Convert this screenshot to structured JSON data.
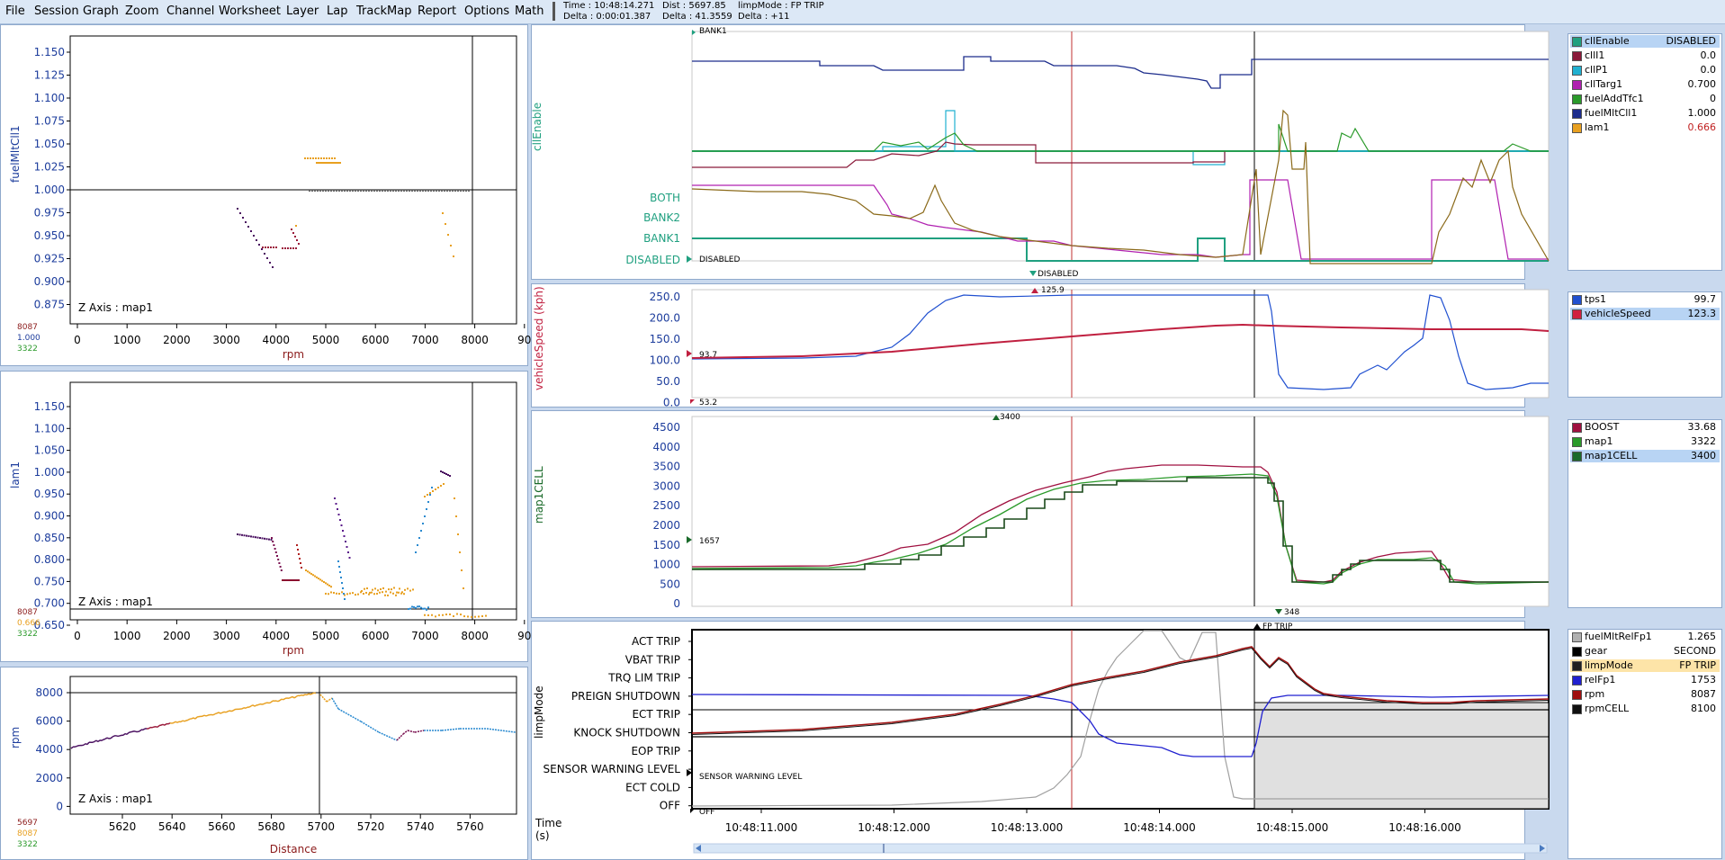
{
  "menu": [
    "File",
    "Session",
    "Graph",
    "Zoom",
    "Channel",
    "Worksheet",
    "Layer",
    "Lap",
    "TrackMap",
    "Report",
    "Options",
    "Math"
  ],
  "status": {
    "line1a": "Time : 10:48:14.271",
    "line1b": "Dist : 5697.85",
    "line1c": "limpMode : FP TRIP",
    "line2a": "Delta : 0:00:01.387",
    "line2b": "Delta : 41.3559",
    "line2c": "Delta : +11"
  },
  "colors": {
    "accent_blue": "#1c3c9c",
    "dark_red": "#8b1a1a",
    "orange": "#e8a020",
    "green": "#2a9a2a",
    "teal": "#2a9a7a"
  },
  "scatter1": {
    "ylabel": "fuelMltCll1",
    "xlabel": "rpm",
    "yticks": [
      "1.150",
      "1.125",
      "1.100",
      "1.075",
      "1.050",
      "1.025",
      "1.000",
      "0.975",
      "0.950",
      "0.925",
      "0.900",
      "0.875"
    ],
    "xticks": [
      "0",
      "1000",
      "2000",
      "3000",
      "4000",
      "5000",
      "6000",
      "7000",
      "8000",
      "90"
    ],
    "zaxis": "Z Axis : map1",
    "readout": [
      "8087",
      "1.000",
      "3322"
    ]
  },
  "scatter2": {
    "ylabel": "lam1",
    "xlabel": "rpm",
    "yticks": [
      "1.150",
      "1.100",
      "1.050",
      "1.000",
      "0.950",
      "0.900",
      "0.850",
      "0.800",
      "0.750",
      "0.700",
      "0.650"
    ],
    "xticks": [
      "0",
      "1000",
      "2000",
      "3000",
      "4000",
      "5000",
      "6000",
      "7000",
      "8000",
      "90"
    ],
    "zaxis": "Z Axis : map1",
    "readout": [
      "8087",
      "0.666",
      "3322"
    ]
  },
  "scatter3": {
    "ylabel": "rpm",
    "xlabel": "Distance",
    "yticks": [
      "8000",
      "6000",
      "4000",
      "2000",
      "0"
    ],
    "xticks": [
      "5620",
      "5640",
      "5660",
      "5680",
      "5700",
      "5720",
      "5740",
      "5760"
    ],
    "zaxis": "Z Axis : map1",
    "readout": [
      "5697",
      "8087",
      "3322"
    ]
  },
  "graph1": {
    "ylabel": "cllEnable",
    "levels": [
      "BOTH",
      "BANK2",
      "BANK1",
      "DISABLED"
    ],
    "top_marker": "BANK1",
    "left_marker": "DISABLED",
    "bottom_marker": "DISABLED"
  },
  "graph2": {
    "ylabel": "vehicleSpeed (kph)",
    "yticks": [
      "250.0",
      "200.0",
      "150.0",
      "100.0",
      "50.0",
      "0.0"
    ],
    "left_marker": "93.7",
    "bottom_marker": "53.2",
    "top_marker": "125.9"
  },
  "graph3": {
    "ylabel": "map1CELL",
    "yticks": [
      "4500",
      "4000",
      "3500",
      "3000",
      "2500",
      "2000",
      "1500",
      "1000",
      "500",
      "0"
    ],
    "left_marker": "1657",
    "top_marker": "3400",
    "bottom_marker": "348"
  },
  "graph4": {
    "ylabel": "limpMode",
    "levels": [
      "ACT TRIP",
      "VBAT TRIP",
      "TRQ LIM TRIP",
      "PREIGN SHUTDOWN",
      "ECT TRIP",
      "KNOCK SHUTDOWN",
      "EOP TRIP",
      "SENSOR WARNING LEVEL",
      "ECT COLD",
      "OFF"
    ],
    "left_marker": "SENSOR WARNING LEVEL",
    "bottom_marker": "OFF",
    "top_marker": "FP TRIP"
  },
  "time_axis": {
    "label1": "Time",
    "label2": "(s)",
    "ticks": [
      "10:48:11.000",
      "10:48:12.000",
      "10:48:13.000",
      "10:48:14.000",
      "10:48:15.000",
      "10:48:16.000"
    ]
  },
  "legend1": [
    {
      "name": "cllEnable",
      "value": "DISABLED",
      "color": "#20a080",
      "selected": true
    },
    {
      "name": "cllI1",
      "value": "0.0",
      "color": "#8b1a3a"
    },
    {
      "name": "cllP1",
      "value": "0.0",
      "color": "#20b0d0"
    },
    {
      "name": "cllTarg1",
      "value": "0.700",
      "color": "#b020b0"
    },
    {
      "name": "fuelAddTfc1",
      "value": "0",
      "color": "#2a9a2a"
    },
    {
      "name": "fuelMltCll1",
      "value": "1.000",
      "color": "#1c2c8c"
    },
    {
      "name": "lam1",
      "value": "0.666",
      "color": "#e8a020",
      "valcolor": "#c02020"
    }
  ],
  "legend2": [
    {
      "name": "tps1",
      "value": "99.7",
      "color": "#2050d0"
    },
    {
      "name": "vehicleSpeed",
      "value": "123.3",
      "color": "#d02040",
      "selected": true
    }
  ],
  "legend3": [
    {
      "name": "BOOST",
      "value": "33.68",
      "color": "#a01040"
    },
    {
      "name": "map1",
      "value": "3322",
      "color": "#2a9a2a"
    },
    {
      "name": "map1CELL",
      "value": "3400",
      "color": "#1a6a2a",
      "selected": true
    }
  ],
  "legend4": [
    {
      "name": "fuelMltRelFp1",
      "value": "1.265",
      "color": "#b0b0b0"
    },
    {
      "name": "gear",
      "value": "SECOND",
      "color": "#000000"
    },
    {
      "name": "limpMode",
      "value": "FP TRIP",
      "color": "#202020",
      "highlight": true
    },
    {
      "name": "relFp1",
      "value": "1753",
      "color": "#2020d0"
    },
    {
      "name": "rpm",
      "value": "8087",
      "color": "#a01010"
    },
    {
      "name": "rpmCELL",
      "value": "8100",
      "color": "#101010"
    }
  ]
}
